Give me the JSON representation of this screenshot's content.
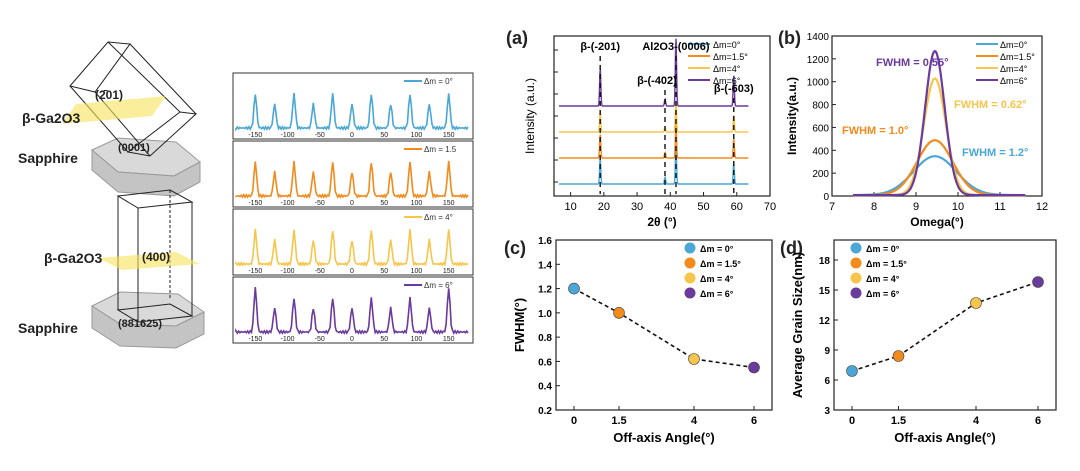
{
  "colors": {
    "s0": "#4aa7d6",
    "s1": "#f28a1c",
    "s2": "#f7c54b",
    "s3": "#6a3a9c"
  },
  "crystals": {
    "top_plane": "(2̄01)",
    "top_layer": "β-Ga2O3",
    "top_sub_plane": "(0001)",
    "top_substrate": "Sapphire",
    "bot_plane": "(400)",
    "bot_layer": "β-Ga2O3",
    "bot_sub_plane": "(88̄1625)",
    "bot_substrate": "Sapphire"
  },
  "phi_scans": {
    "ticks": [
      "-150",
      "-100",
      "-50",
      "0",
      "50",
      "100",
      "150"
    ],
    "panels": [
      {
        "legend": "Δm = 0°",
        "color_key": "s0"
      },
      {
        "legend": "Δm = 1.5",
        "color_key": "s1"
      },
      {
        "legend": "Δm = 4°",
        "color_key": "s2"
      },
      {
        "legend": "Δm = 6°",
        "color_key": "s3"
      }
    ]
  },
  "chart_data": [
    {
      "panel": "(a)",
      "type": "line",
      "xlabel": "2θ (°)",
      "ylabel": "Intensity (a.u.)",
      "xlim": [
        5,
        70
      ],
      "xticks": [
        10,
        20,
        30,
        40,
        50,
        60,
        70
      ],
      "peak_labels": [
        {
          "text": "β-(-201)",
          "x": 18.9
        },
        {
          "text": "β-(-402)",
          "x": 38.4
        },
        {
          "text": "Al2O3-(0006)",
          "x": 41.7
        },
        {
          "text": "β-(-603)",
          "x": 59.1
        }
      ],
      "series": [
        {
          "name": "Δm=0°",
          "color_key": "s0",
          "peaks": [
            {
              "x": 18.9,
              "h": 0.38
            },
            {
              "x": 38.4,
              "h": 0.1
            },
            {
              "x": 41.7,
              "h": 0.55
            },
            {
              "x": 59.1,
              "h": 0.3
            }
          ]
        },
        {
          "name": "Δm=1.5°",
          "color_key": "s1",
          "peaks": [
            {
              "x": 18.9,
              "h": 0.35
            },
            {
              "x": 38.4,
              "h": 0.08
            },
            {
              "x": 41.7,
              "h": 0.5
            },
            {
              "x": 59.1,
              "h": 0.28
            }
          ]
        },
        {
          "name": "Δm=4°",
          "color_key": "s2",
          "peaks": [
            {
              "x": 18.9,
              "h": 0.3
            },
            {
              "x": 38.4,
              "h": 0.07
            },
            {
              "x": 41.7,
              "h": 0.45
            },
            {
              "x": 59.1,
              "h": 0.25
            }
          ]
        },
        {
          "name": "Δm=6°",
          "color_key": "s3",
          "peaks": [
            {
              "x": 18.9,
              "h": 0.55
            },
            {
              "x": 38.4,
              "h": 0.1
            },
            {
              "x": 41.7,
              "h": 1.0
            },
            {
              "x": 59.1,
              "h": 0.45
            }
          ]
        }
      ]
    },
    {
      "panel": "(b)",
      "type": "line",
      "xlabel": "Omega(°)",
      "ylabel": "Intensity(a.u.)",
      "xlim": [
        7,
        12
      ],
      "ylim": [
        0,
        1400
      ],
      "xticks": [
        7,
        8,
        9,
        10,
        11,
        12
      ],
      "yticks": [
        0,
        200,
        400,
        600,
        800,
        1000,
        1200,
        1400
      ],
      "series": [
        {
          "name": "Δm=0°",
          "color_key": "s0",
          "center": 9.45,
          "peak": 340,
          "fwhm": 1.2
        },
        {
          "name": "Δm=1.5°",
          "color_key": "s1",
          "center": 9.45,
          "peak": 480,
          "fwhm": 1.0
        },
        {
          "name": "Δm=4°",
          "color_key": "s2",
          "center": 9.45,
          "peak": 1020,
          "fwhm": 0.62
        },
        {
          "name": "Δm=6°",
          "color_key": "s3",
          "center": 9.45,
          "peak": 1260,
          "fwhm": 0.55
        }
      ],
      "annotations": [
        "FWHM = 0.55°",
        "FWHM = 0.62°",
        "FWHM = 1.0°",
        "FWHM = 1.2°"
      ]
    },
    {
      "panel": "(c)",
      "type": "scatter",
      "xlabel": "Off-axis Angle(°)",
      "ylabel": "FWHM(°)",
      "ylim": [
        0.2,
        1.6
      ],
      "yticks": [
        "0.2",
        "0.4",
        "0.6",
        "0.8",
        "1.0",
        "1.2",
        "1.4",
        "1.6"
      ],
      "categories": [
        "0",
        "1.5",
        "4",
        "6"
      ],
      "values": [
        1.2,
        1.0,
        0.62,
        0.55
      ],
      "legend": [
        "Δm = 0°",
        "Δm = 1.5°",
        "Δm = 4°",
        "Δm = 6°"
      ]
    },
    {
      "panel": "(d)",
      "type": "scatter",
      "xlabel": "Off-axis Angle(°)",
      "ylabel": "Average Grain Size(nm)",
      "ylim": [
        3,
        20
      ],
      "yticks": [
        "3",
        "6",
        "9",
        "12",
        "15",
        "18"
      ],
      "categories": [
        "0",
        "1.5",
        "4",
        "6"
      ],
      "values": [
        6.9,
        8.4,
        13.7,
        15.8
      ],
      "legend": [
        "Δm = 0°",
        "Δm = 1.5°",
        "Δm = 4°",
        "Δm = 6°"
      ]
    }
  ]
}
